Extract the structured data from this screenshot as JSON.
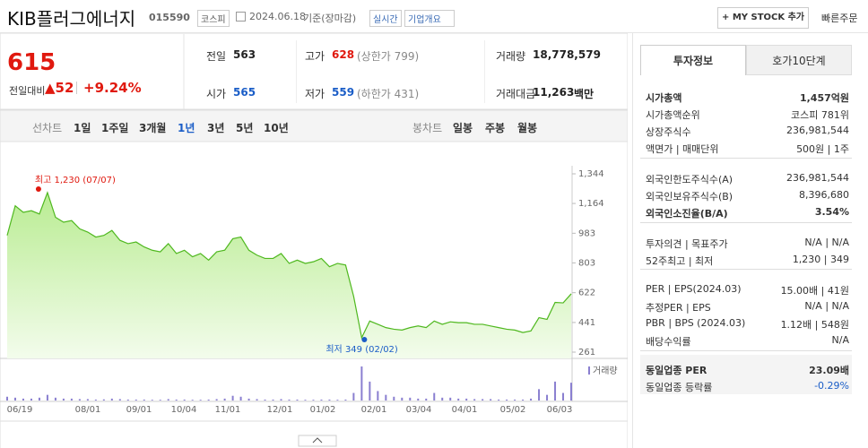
{
  "header": {
    "title": "KIB플러그에너지",
    "code": "015590",
    "market": "코스피",
    "date": "2024.06.18",
    "basis": "기준(장마감)",
    "realtime": "실시간",
    "company_info": "기업개요",
    "my_stock": "+ MY STOCK 추가",
    "quick_order": "빠른주문"
  },
  "quote": {
    "price": "615",
    "change_label": "전일대비",
    "change": "▲52",
    "change_rate": "+9.24%"
  },
  "summary": [
    {
      "label": "전일",
      "value": "563"
    },
    {
      "label": "고가",
      "value": "628",
      "note": "(상한가 799)"
    },
    {
      "label": "거래량",
      "value": "18,778,579"
    },
    {
      "label": "시가",
      "value": "565"
    },
    {
      "label": "저가",
      "value": "559",
      "note": "(하한가 431)"
    },
    {
      "label": "거래대금",
      "value": "11,263",
      "note": "백만"
    }
  ],
  "chart_tabs": {
    "line_label": "선차트",
    "periods": [
      "1일",
      "1주일",
      "3개월",
      "1년",
      "3년",
      "5년",
      "10년"
    ],
    "candle_label": "봉차트",
    "candles": [
      "일봉",
      "주봉",
      "월봉"
    ]
  },
  "chart_data": {
    "type": "line",
    "color": "#4fb81f",
    "values": [
      970,
      1150,
      1110,
      1120,
      1100,
      1230,
      1080,
      1050,
      1060,
      1010,
      990,
      960,
      970,
      1000,
      940,
      920,
      930,
      900,
      880,
      870,
      920,
      860,
      880,
      840,
      860,
      820,
      870,
      880,
      950,
      960,
      880,
      850,
      830,
      830,
      860,
      800,
      820,
      800,
      810,
      830,
      780,
      800,
      790,
      600,
      349,
      450,
      430,
      410,
      400,
      395,
      410,
      420,
      410,
      450,
      430,
      445,
      440,
      440,
      430,
      430,
      420,
      410,
      400,
      395,
      380,
      390,
      470,
      460,
      563,
      560,
      615
    ],
    "ylim": [
      261,
      1344
    ],
    "yticks": [
      {
        "value": 1344,
        "label": "1,344"
      },
      {
        "value": 1164,
        "label": "1,164"
      },
      983,
      803,
      622,
      441,
      261
    ],
    "high_label": "최고 1,230 (07/07)",
    "low_label": "최저 349 (02/02)",
    "xtick_labels": [
      "06/19",
      "08/01",
      "09/01",
      "10/04",
      "11/01",
      "12/01",
      "01/02",
      "02/01",
      "03/04",
      "04/01",
      "05/02",
      "06/03"
    ],
    "volume": {
      "name": "거래량",
      "color": "#8a7fd0",
      "values": [
        4,
        3,
        2,
        2,
        3,
        6,
        3,
        2,
        2,
        1.5,
        1.5,
        1,
        1.2,
        2,
        1.5,
        1,
        1,
        1,
        0.8,
        0.8,
        1.5,
        1,
        1,
        0.8,
        0.8,
        1,
        1.5,
        2,
        5,
        4,
        2,
        1.5,
        1,
        1,
        1.5,
        1,
        1,
        0.8,
        0.8,
        1,
        1,
        0.8,
        1,
        8,
        36,
        20,
        10,
        6,
        4,
        3,
        3,
        2,
        2,
        8,
        3,
        3,
        2,
        2,
        1.5,
        1.5,
        1.5,
        1,
        1,
        1,
        1,
        2,
        12,
        6,
        20,
        8,
        18.8
      ]
    }
  },
  "side": {
    "tabs": [
      "투자정보",
      "호가10단계"
    ],
    "groups": [
      [
        {
          "label": "시가총액",
          "value": "1,457억원"
        },
        {
          "label": "시가총액순위",
          "value": "코스피 781위"
        },
        {
          "label": "상장주식수",
          "value": "236,981,544"
        },
        {
          "label": "액면가 | 매매단위",
          "value": "500원 | 1주"
        }
      ],
      [
        {
          "label": "외국인한도주식수(A)",
          "value": "236,981,544"
        },
        {
          "label": "외국인보유주식수(B)",
          "value": "8,396,680"
        },
        {
          "label": "외국인소진율(B/A)",
          "value": "3.54%"
        }
      ],
      [
        {
          "label": "투자의견 | 목표주가",
          "value": "N/A | N/A"
        },
        {
          "label": "52주최고 | 최저",
          "value": "1,230 | 349"
        }
      ],
      [
        {
          "label": "PER | EPS(2024.03)",
          "value": "15.00배 | 41원"
        },
        {
          "label": "추정PER | EPS",
          "value": "N/A | N/A"
        },
        {
          "label": "PBR | BPS (2024.03)",
          "value": "1.12배 | 548원"
        },
        {
          "label": "배당수익률",
          "value": "N/A"
        }
      ],
      [
        {
          "label": "동일업종 PER",
          "value": "23.09배"
        },
        {
          "label": "동일업종 등락률",
          "value": "-0.29%"
        }
      ]
    ]
  }
}
